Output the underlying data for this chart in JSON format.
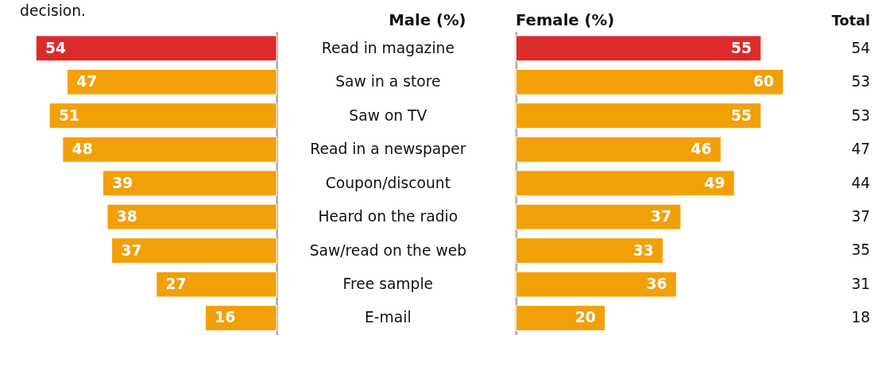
{
  "chart_data": [
    {
      "type": "bar",
      "orientation": "horizontal",
      "title": "Male (%)",
      "annotations": [
        "decision."
      ],
      "categories": [
        "Read in magazine",
        "Saw in a store",
        "Saw on TV",
        "Read in a newspaper",
        "Coupon/discount",
        "Heard on the radio",
        "Saw/read on the web",
        "Free sample",
        "E-mail"
      ],
      "values": [
        54,
        47,
        51,
        48,
        39,
        38,
        37,
        27,
        16
      ],
      "colors": [
        "#dd2a2a",
        "#f2a008",
        "#f2a008",
        "#f2a008",
        "#f2a008",
        "#f2a008",
        "#f2a008",
        "#f2a008",
        "#f2a008"
      ],
      "data_labels": true
    },
    {
      "type": "bar",
      "orientation": "horizontal",
      "title": "Female (%)",
      "categories": [
        null,
        null,
        null,
        null,
        null,
        null,
        null,
        null,
        null
      ],
      "values": [
        55,
        60,
        55,
        46,
        49,
        37,
        33,
        36,
        20
      ],
      "colors": [
        "#dd2a2a",
        "#f2a008",
        "#f2a008",
        "#f2a008",
        "#f2a008",
        "#f2a008",
        "#f2a008",
        "#f2a008",
        "#f2a008"
      ],
      "data_labels": true
    },
    {
      "type": "other",
      "title": "Total",
      "categories": [
        null,
        null,
        null,
        null,
        null,
        null,
        null,
        null,
        null
      ],
      "values": [
        54,
        53,
        53,
        47,
        44,
        37,
        35,
        31,
        18
      ],
      "data_labels": true
    }
  ]
}
